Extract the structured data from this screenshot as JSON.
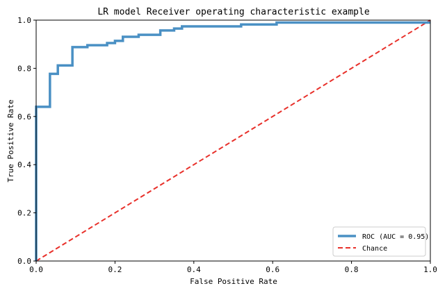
{
  "chart_data": {
    "type": "line",
    "title": "LR model Receiver operating characteristic example",
    "xlabel": "False Positive Rate",
    "ylabel": "True Positive Rate",
    "xlim": [
      0,
      1
    ],
    "ylim": [
      0,
      1
    ],
    "xticks": [
      0.0,
      0.2,
      0.4,
      0.6,
      0.8,
      1.0
    ],
    "xtick_labels": [
      "0.0",
      "0.2",
      "0.4",
      "0.6",
      "0.8",
      "1.0"
    ],
    "yticks": [
      0.0,
      0.2,
      0.4,
      0.6,
      0.8,
      1.0
    ],
    "ytick_labels": [
      "0.0",
      "0.2",
      "0.4",
      "0.6",
      "0.8",
      "1.0"
    ],
    "grid": false,
    "legend_position": "lower-right",
    "series": [
      {
        "name": "ROC (AUC = 0.95)",
        "style": "solid",
        "color": "#4a90c4",
        "x": [
          0.0,
          0.0,
          0.035,
          0.035,
          0.055,
          0.055,
          0.092,
          0.092,
          0.13,
          0.13,
          0.18,
          0.18,
          0.2,
          0.2,
          0.22,
          0.22,
          0.26,
          0.26,
          0.315,
          0.315,
          0.35,
          0.35,
          0.37,
          0.37,
          0.52,
          0.52,
          0.61,
          0.61,
          1.0
        ],
        "y": [
          0.0,
          0.64,
          0.64,
          0.777,
          0.777,
          0.812,
          0.812,
          0.888,
          0.888,
          0.896,
          0.896,
          0.905,
          0.905,
          0.914,
          0.914,
          0.931,
          0.931,
          0.939,
          0.939,
          0.957,
          0.957,
          0.965,
          0.965,
          0.974,
          0.974,
          0.982,
          0.982,
          0.99,
          0.99
        ]
      },
      {
        "name": "Chance",
        "style": "dashed",
        "color": "#e8302a",
        "x": [
          0.0,
          1.0
        ],
        "y": [
          0.0,
          1.0
        ]
      }
    ]
  }
}
